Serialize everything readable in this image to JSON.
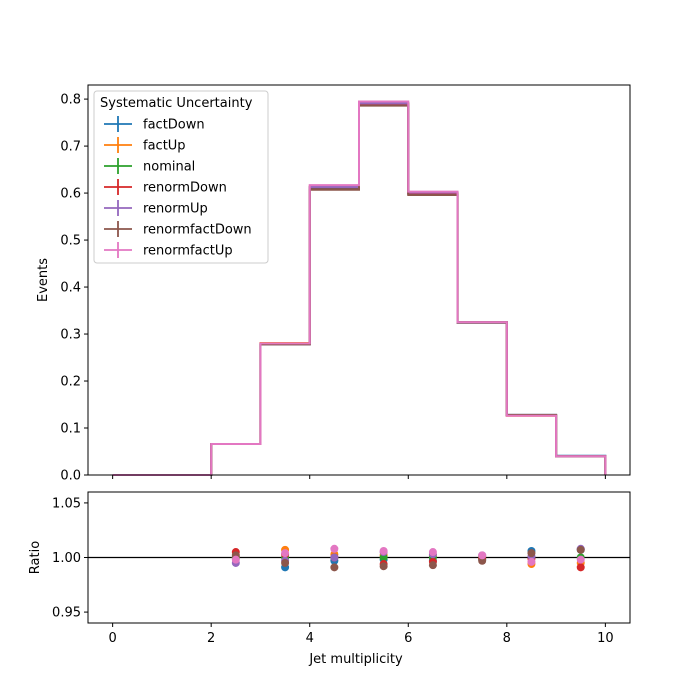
{
  "chart_data": [
    {
      "type": "line",
      "panel": "main",
      "drawstyle": "steps",
      "ylabel": "Events",
      "xlim": [
        -0.5,
        10.5
      ],
      "ylim": [
        0,
        0.83
      ],
      "yticks": [
        0.0,
        0.1,
        0.2,
        0.3,
        0.4,
        0.5,
        0.6,
        0.7,
        0.8
      ],
      "ytick_labels": [
        "0.0",
        "0.1",
        "0.2",
        "0.3",
        "0.4",
        "0.5",
        "0.6",
        "0.7",
        "0.8"
      ],
      "bin_edges": [
        0,
        1,
        2,
        3,
        4,
        5,
        6,
        7,
        8,
        9,
        10
      ],
      "legend": {
        "title": "Systematic Uncertainty",
        "placement": "upper-left"
      },
      "grid": false,
      "series": [
        {
          "name": "factDown",
          "color": "#1f77b4",
          "values": [
            0.0,
            0.0,
            0.066,
            0.278,
            0.61,
            0.788,
            0.598,
            0.324,
            0.128,
            0.041
          ]
        },
        {
          "name": "factUp",
          "color": "#ff7f0e",
          "values": [
            0.0,
            0.0,
            0.066,
            0.281,
            0.614,
            0.792,
            0.601,
            0.325,
            0.126,
            0.04
          ]
        },
        {
          "name": "nominal",
          "color": "#2ca02c",
          "values": [
            0.0,
            0.0,
            0.066,
            0.279,
            0.612,
            0.79,
            0.6,
            0.325,
            0.127,
            0.04
          ]
        },
        {
          "name": "renormDown",
          "color": "#d62728",
          "values": [
            0.0,
            0.0,
            0.066,
            0.279,
            0.612,
            0.789,
            0.599,
            0.325,
            0.127,
            0.04
          ]
        },
        {
          "name": "renormUp",
          "color": "#9467bd",
          "values": [
            0.0,
            0.0,
            0.066,
            0.278,
            0.613,
            0.791,
            0.601,
            0.325,
            0.127,
            0.04
          ]
        },
        {
          "name": "renormfactDown",
          "color": "#8c564b",
          "values": [
            0.0,
            0.0,
            0.066,
            0.278,
            0.607,
            0.786,
            0.596,
            0.324,
            0.128,
            0.04
          ]
        },
        {
          "name": "renormfactUp",
          "color": "#e377c2",
          "values": [
            0.0,
            0.0,
            0.066,
            0.28,
            0.617,
            0.795,
            0.603,
            0.325,
            0.126,
            0.04
          ]
        }
      ]
    },
    {
      "type": "scatter",
      "panel": "ratio",
      "xlabel": "Jet multiplicity",
      "ylabel": "Ratio",
      "xlim": [
        -0.5,
        10.5
      ],
      "ylim": [
        0.94,
        1.06
      ],
      "xticks": [
        0,
        2,
        4,
        6,
        8,
        10
      ],
      "xtick_labels": [
        "0",
        "2",
        "4",
        "6",
        "8",
        "10"
      ],
      "yticks": [
        0.95,
        1.0,
        1.05
      ],
      "ytick_labels": [
        "0.95",
        "1.00",
        "1.05"
      ],
      "reference_line": 1.0,
      "x": [
        2.5,
        3.5,
        4.5,
        5.5,
        6.5,
        7.5,
        8.5,
        9.5
      ],
      "series": [
        {
          "name": "factDown",
          "color": "#1f77b4",
          "values": [
            1.0,
            0.991,
            0.997,
            0.998,
            0.997,
            0.998,
            1.006,
            1.007
          ]
        },
        {
          "name": "factUp",
          "color": "#ff7f0e",
          "values": [
            1.0,
            1.007,
            1.003,
            1.002,
            1.002,
            1.001,
            0.994,
            0.995
          ]
        },
        {
          "name": "nominal",
          "color": "#2ca02c",
          "values": [
            1.0,
            1.0,
            1.0,
            1.0,
            1.0,
            1.0,
            1.0,
            1.0
          ]
        },
        {
          "name": "renormDown",
          "color": "#d62728",
          "values": [
            1.005,
            1.003,
            1.0,
            0.994,
            0.996,
            0.999,
            0.999,
            0.991
          ]
        },
        {
          "name": "renormUp",
          "color": "#9467bd",
          "values": [
            0.995,
            0.997,
            1.0,
            1.005,
            1.003,
            1.002,
            1.001,
            1.008
          ]
        },
        {
          "name": "renormfactDown",
          "color": "#8c564b",
          "values": [
            1.002,
            0.995,
            0.991,
            0.992,
            0.993,
            0.997,
            1.004,
            1.007
          ]
        },
        {
          "name": "renormfactUp",
          "color": "#e377c2",
          "values": [
            0.998,
            1.004,
            1.008,
            1.006,
            1.005,
            1.002,
            0.996,
            0.998
          ]
        }
      ]
    }
  ]
}
